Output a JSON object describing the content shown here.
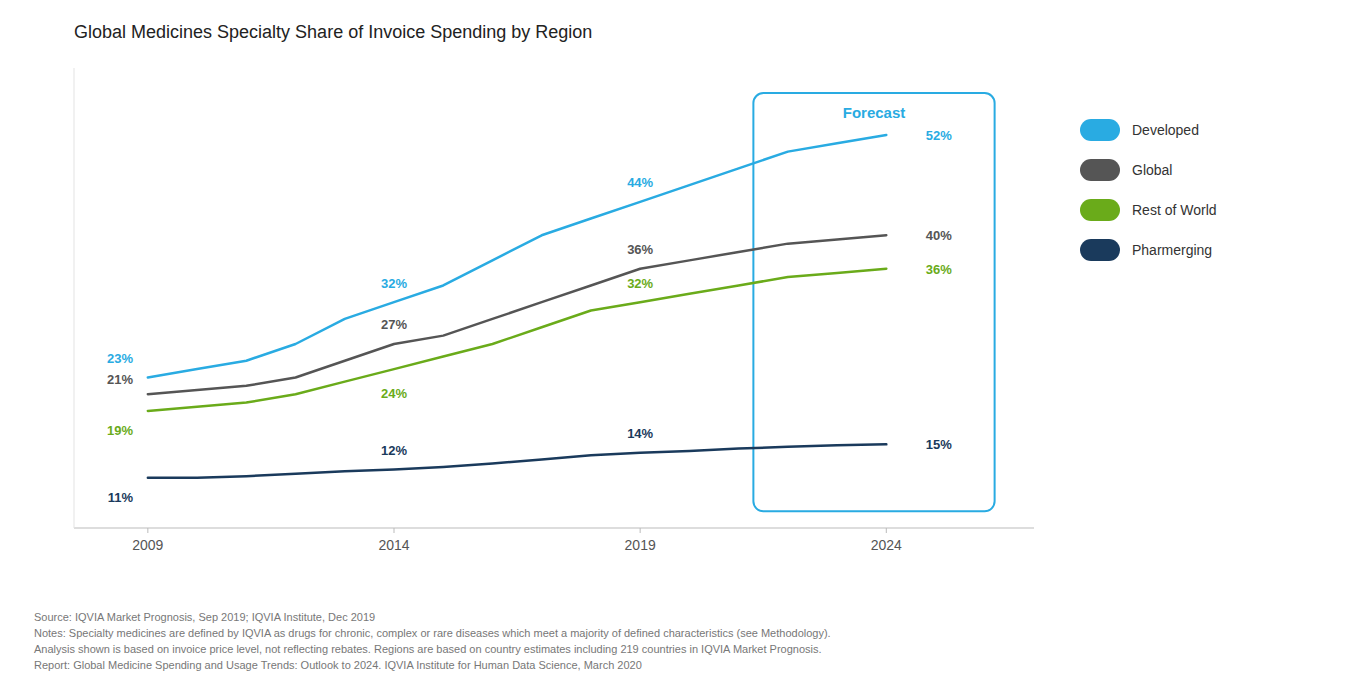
{
  "chart_data": {
    "type": "line",
    "title": "Global Medicines Specialty Share of Invoice Spending by Region",
    "x": [
      2009,
      2010,
      2011,
      2012,
      2013,
      2014,
      2015,
      2016,
      2017,
      2018,
      2019,
      2020,
      2021,
      2022,
      2023,
      2024
    ],
    "series": [
      {
        "name": "Developed",
        "color": "#29ABE2",
        "values": [
          23,
          24,
          25,
          27,
          30,
          32,
          34,
          37,
          40,
          42,
          44,
          46,
          48,
          50,
          51,
          52
        ],
        "value_labels": [
          "23%",
          null,
          null,
          null,
          null,
          "32%",
          null,
          null,
          null,
          null,
          "44%",
          null,
          null,
          null,
          null,
          "52%"
        ]
      },
      {
        "name": "Global",
        "color": "#555555",
        "values": [
          21,
          21.5,
          22,
          23,
          25,
          27,
          28,
          30,
          32,
          34,
          36,
          37,
          38,
          39,
          39.5,
          40
        ],
        "value_labels": [
          "21%",
          null,
          null,
          null,
          null,
          "27%",
          null,
          null,
          null,
          null,
          "36%",
          null,
          null,
          null,
          null,
          "40%"
        ]
      },
      {
        "name": "Rest of World",
        "color": "#6AAB1A",
        "values": [
          19,
          19.5,
          20,
          21,
          22.5,
          24,
          25.5,
          27,
          29,
          31,
          32,
          33,
          34,
          35,
          35.5,
          36
        ],
        "value_labels": [
          "19%",
          null,
          null,
          null,
          null,
          "24%",
          null,
          null,
          null,
          null,
          "32%",
          null,
          null,
          null,
          null,
          "36%"
        ]
      },
      {
        "name": "Pharmerging",
        "color": "#1A3A5C",
        "values": [
          11,
          11,
          11.2,
          11.5,
          11.8,
          12,
          12.3,
          12.7,
          13.2,
          13.7,
          14,
          14.2,
          14.5,
          14.7,
          14.9,
          15
        ],
        "value_labels": [
          "11%",
          null,
          null,
          null,
          null,
          "12%",
          null,
          null,
          null,
          null,
          "14%",
          null,
          null,
          null,
          null,
          "15%"
        ]
      }
    ],
    "xlim": [
      2007.5,
      2027
    ],
    "ylim": [
      5,
      60
    ],
    "xticks": [
      2009,
      2014,
      2019,
      2024
    ],
    "tick_labels": "x",
    "grid": false,
    "legend": "right",
    "data_labels": true,
    "annotations": [
      {
        "text": "Forecast",
        "x": [
          2021.3,
          2026.2
        ],
        "y": [
          7,
          57
        ],
        "color": "#29ABE2"
      }
    ],
    "notes": [
      "Source: IQVIA Market Prognosis, Sep 2019; IQVIA Institute, Dec 2019",
      "Notes: Specialty medicines are defined by IQVIA as drugs for chronic, complex or rare diseases which meet a majority of defined characteristics (see Methodology).",
      "Analysis shown is based on invoice price level, not reflecting rebates. Regions are based on country estimates including 219 countries in IQVIA Market Prognosis.",
      "Report: Global Medicine Spending and Usage Trends: Outlook to 2024. IQVIA Institute for Human Data Science, March 2020"
    ]
  }
}
